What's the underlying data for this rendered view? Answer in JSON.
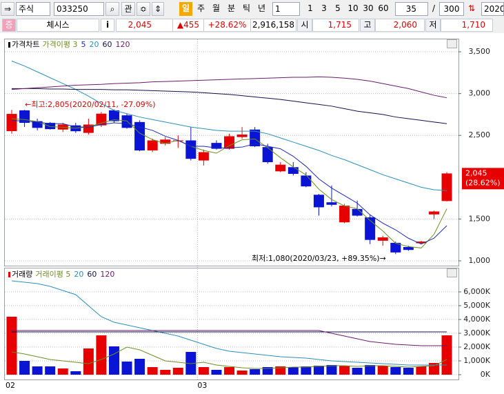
{
  "toolbar": {
    "market": "주식",
    "code": "033250",
    "watch": "관",
    "periods": [
      "일",
      "주",
      "월",
      "분",
      "틱",
      "년"
    ],
    "unit": "1",
    "unit_buttons": [
      "1",
      "3",
      "5",
      "10",
      "30",
      "60"
    ],
    "count": "35",
    "separator": "/",
    "total": "300",
    "date": "2020/"
  },
  "info": {
    "badge": "증",
    "name": "체시스",
    "info_button": "i",
    "price": "2,045",
    "change": "▲455",
    "rate": "+28.62%",
    "volume": "2,916,158",
    "open_label": "시",
    "open": "1,715",
    "high_label": "고",
    "high": "2,060",
    "low_label": "저",
    "low": "1,710"
  },
  "chart_data": [
    {
      "type": "candlestick",
      "name": "가격차트",
      "up_color": "#e60000",
      "down_color": "#0a14d2",
      "open": [
        2551,
        2800,
        2670,
        2650,
        2570,
        2620,
        2530,
        2620,
        2800,
        2740,
        2660,
        2320,
        2400,
        2430,
        2440,
        2200,
        2410,
        2340,
        2480,
        2570,
        2360,
        2070,
        2120,
        2020,
        1790,
        1700,
        1460,
        1620,
        1520,
        1240,
        1215,
        1165,
        1210,
        1555,
        1715
      ],
      "high": [
        2805,
        2805,
        2700,
        2660,
        2650,
        2650,
        2700,
        2780,
        2810,
        2760,
        2680,
        2460,
        2480,
        2500,
        2600,
        2330,
        2440,
        2520,
        2600,
        2600,
        2400,
        2180,
        2180,
        2060,
        1800,
        1900,
        1680,
        1720,
        1550,
        1300,
        1230,
        1180,
        1240,
        1600,
        2060
      ],
      "low": [
        2520,
        2600,
        2560,
        2570,
        2540,
        2530,
        2510,
        2600,
        2650,
        2580,
        2310,
        2300,
        2380,
        2350,
        2200,
        2140,
        2330,
        2330,
        2460,
        2360,
        2160,
        2060,
        2020,
        1880,
        1540,
        1650,
        1450,
        1530,
        1200,
        1180,
        1080,
        1120,
        1200,
        1500,
        1710
      ],
      "close": [
        2757,
        2650,
        2590,
        2575,
        2630,
        2550,
        2630,
        2760,
        2670,
        2590,
        2320,
        2440,
        2450,
        2440,
        2220,
        2300,
        2340,
        2490,
        2510,
        2370,
        2180,
        2150,
        2040,
        1890,
        1640,
        1670,
        1660,
        1540,
        1250,
        1280,
        1100,
        1130,
        1230,
        1590,
        2045
      ],
      "series": [
        {
          "name": "가격이평 3",
          "color": "#6b8e23",
          "values": [
            2700,
            2690,
            2666,
            2605,
            2598,
            2585,
            2603,
            2647,
            2687,
            2673,
            2527,
            2450,
            2403,
            2443,
            2370,
            2320,
            2287,
            2377,
            2447,
            2457,
            2353,
            2233,
            2123,
            2027,
            1857,
            1733,
            1657,
            1623,
            1483,
            1357,
            1210,
            1170,
            1153,
            1317,
            1622
          ]
        },
        {
          "name": "5",
          "color": "#1c2ab0",
          "values": [
            2680,
            2670,
            2660,
            2640,
            2640,
            2600,
            2600,
            2630,
            2650,
            2640,
            2600,
            2560,
            2490,
            2440,
            2370,
            2370,
            2350,
            2350,
            2360,
            2400,
            2370,
            2340,
            2250,
            2130,
            1980,
            1870,
            1780,
            1690,
            1550,
            1450,
            1370,
            1270,
            1200,
            1270,
            1420
          ]
        },
        {
          "name": "20",
          "color": "#2a8fb8",
          "values": [
            3390,
            3330,
            3260,
            3190,
            3120,
            3050,
            2970,
            2880,
            2800,
            2760,
            2720,
            2690,
            2660,
            2630,
            2600,
            2580,
            2560,
            2550,
            2550,
            2550,
            2520,
            2470,
            2420,
            2370,
            2320,
            2260,
            2210,
            2150,
            2090,
            2030,
            1980,
            1930,
            1880,
            1850,
            1840
          ]
        },
        {
          "name": "60",
          "color": "#101048",
          "values": [
            3060,
            3060,
            3060,
            3055,
            3055,
            3050,
            3050,
            3050,
            3045,
            3045,
            3040,
            3035,
            3030,
            3025,
            3020,
            3010,
            3000,
            2990,
            2975,
            2960,
            2945,
            2930,
            2910,
            2890,
            2870,
            2850,
            2820,
            2790,
            2770,
            2750,
            2720,
            2700,
            2680,
            2660,
            2640
          ]
        },
        {
          "name": "120",
          "color": "#6a1a6a",
          "values": [
            3050,
            3060,
            3070,
            3080,
            3090,
            3100,
            3105,
            3110,
            3120,
            3125,
            3130,
            3140,
            3145,
            3150,
            3155,
            3160,
            3165,
            3170,
            3175,
            3180,
            3185,
            3190,
            3195,
            3195,
            3200,
            3195,
            3185,
            3170,
            3150,
            3120,
            3090,
            3060,
            3020,
            2980,
            2950
          ]
        }
      ],
      "ylim": [
        942,
        3649
      ],
      "yticks": [
        {
          "value": 1000,
          "label": "1,000"
        },
        {
          "value": 1500,
          "label": "1,500"
        },
        {
          "value": 2500,
          "label": "2,500"
        },
        {
          "value": 3000,
          "label": "3,000"
        },
        {
          "value": 3500,
          "label": "3,500"
        }
      ],
      "grid": true,
      "annotations": [
        "←최고:2,805(2020/02/11, -27.09%)",
        "최저:1,080(2020/03/23, +89.35%)→"
      ],
      "last_label": [
        "2,045",
        "(28.62%)"
      ]
    },
    {
      "type": "bar",
      "name": "거래량",
      "categories": [
        "02",
        null,
        null,
        null,
        null,
        null,
        null,
        null,
        null,
        null,
        null,
        null,
        null,
        null,
        null,
        "03",
        null,
        null,
        null,
        null,
        null,
        null,
        null,
        null,
        null,
        null,
        null,
        null,
        null,
        null,
        null,
        null,
        null,
        null,
        null
      ],
      "values": [
        4200,
        1000,
        600,
        600,
        450,
        250,
        1900,
        2850,
        2050,
        950,
        1150,
        550,
        350,
        500,
        1650,
        550,
        350,
        550,
        300,
        400,
        550,
        600,
        550,
        600,
        650,
        700,
        650,
        500,
        700,
        650,
        550,
        500,
        600,
        850,
        2850
      ],
      "series": [
        {
          "name": "거래이평 5",
          "color": "#6b8e23",
          "values": [
            1650,
            1500,
            1300,
            1100,
            1000,
            900,
            800,
            1100,
            1500,
            2000,
            1800,
            1400,
            1000,
            900,
            800,
            900,
            700,
            600,
            500,
            450,
            450,
            500,
            550,
            550,
            600,
            650,
            650,
            600,
            650,
            650,
            600,
            550,
            600,
            650,
            1100
          ]
        },
        {
          "name": "20",
          "color": "#2a8fb8",
          "values": [
            6800,
            6700,
            6600,
            6400,
            6100,
            5800,
            5000,
            4200,
            3800,
            3600,
            3400,
            3200,
            3000,
            2800,
            2500,
            2200,
            1900,
            1700,
            1600,
            1500,
            1400,
            1300,
            1250,
            1200,
            1100,
            1000,
            950,
            900,
            850,
            800,
            750,
            700,
            700,
            700,
            700
          ]
        },
        {
          "name": "60",
          "color": "#101048",
          "values": [
            3100,
            3100,
            3100,
            3100,
            3100,
            3100,
            3100,
            3100,
            3100,
            3100,
            3100,
            3100,
            3100,
            3100,
            3100,
            3100,
            3100,
            3100,
            3100,
            3100,
            3100,
            3100,
            3100,
            3100,
            3100,
            3100,
            3100,
            3100,
            3100,
            3100,
            3100,
            3100,
            3100,
            3100,
            3100
          ]
        },
        {
          "name": "120",
          "color": "#6a1a6a",
          "values": [
            3200,
            3200,
            3200,
            3200,
            3200,
            3200,
            3200,
            3200,
            3200,
            3200,
            3200,
            3200,
            3200,
            3200,
            3200,
            3200,
            3200,
            3200,
            3200,
            3200,
            3200,
            3200,
            3200,
            3200,
            3200,
            3000,
            2800,
            2600,
            2400,
            2300,
            2200,
            2150,
            2100,
            2100,
            2100
          ]
        }
      ],
      "ylim": [
        -350,
        7650
      ],
      "yticks": [
        {
          "value": 0,
          "label": "0K"
        },
        {
          "value": 1000,
          "label": "1,000K"
        },
        {
          "value": 2000,
          "label": "2,000K"
        },
        {
          "value": 3000,
          "label": "3,000K"
        },
        {
          "value": 4000,
          "label": "4,000K"
        },
        {
          "value": 5000,
          "label": "5,000K"
        },
        {
          "value": 6000,
          "label": "6,000K"
        }
      ],
      "grid": true
    }
  ]
}
